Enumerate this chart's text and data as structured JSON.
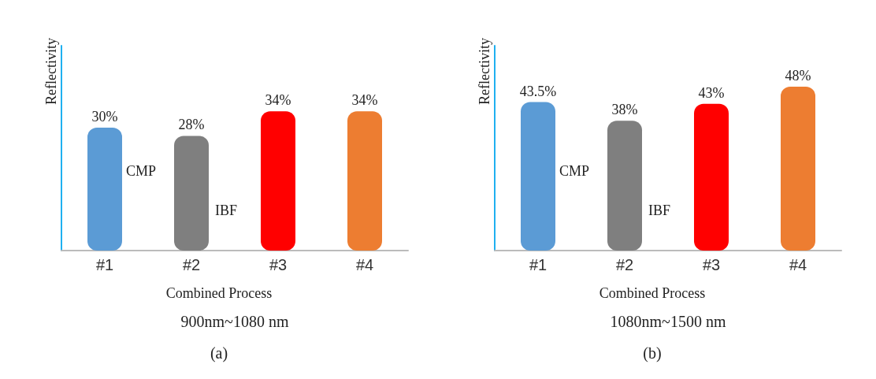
{
  "chart_data": [
    {
      "type": "bar",
      "ylabel": "Reflectivity",
      "xlabel": "900nm~1080 nm",
      "categories": [
        "#1",
        "#2",
        "#3",
        "#4"
      ],
      "values": [
        30,
        28,
        34,
        34
      ],
      "value_labels": [
        "30%",
        "28%",
        "34%",
        "34%"
      ],
      "colors": [
        "#5b9bd5",
        "#7f7f7f",
        "#ff0000",
        "#ed7d31"
      ],
      "ylim": [
        0,
        50
      ],
      "tick_labels": "x",
      "grid": false,
      "annotations": [
        "CMP",
        "IBF",
        "Combined Process",
        "(a)"
      ]
    },
    {
      "type": "bar",
      "ylabel": "Reflectivity",
      "xlabel": "1080nm~1500 nm",
      "categories": [
        "#1",
        "#2",
        "#3",
        "#4"
      ],
      "values": [
        43.5,
        38,
        43,
        48
      ],
      "value_labels": [
        "43.5%",
        "38%",
        "43%",
        "48%"
      ],
      "colors": [
        "#5b9bd5",
        "#7f7f7f",
        "#ff0000",
        "#ed7d31"
      ],
      "ylim": [
        0,
        60
      ],
      "tick_labels": "x",
      "grid": false,
      "annotations": [
        "CMP",
        "IBF",
        "Combined Process",
        "(b)"
      ]
    }
  ]
}
